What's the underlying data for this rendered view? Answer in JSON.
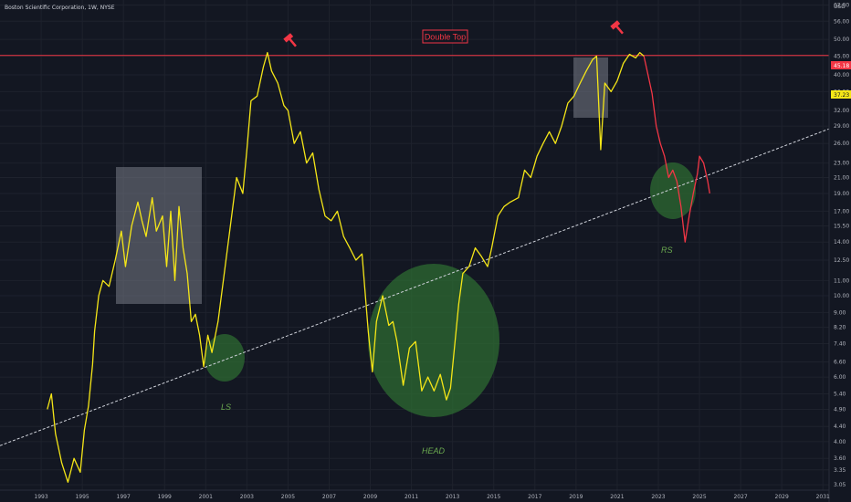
{
  "header": {
    "title": "Boston Scientific Corporation, 1W, NYSE"
  },
  "currency": "USD",
  "chart_data": {
    "type": "line",
    "y_scale": "log",
    "ylim": [
      2.95,
      64
    ],
    "xlim": [
      1991.0,
      2031.3
    ],
    "y_ticks": [
      "62.00",
      "56.00",
      "50.00",
      "45.00",
      "40.00",
      "36.00",
      "32.00",
      "29.00",
      "26.00",
      "23.00",
      "21.00",
      "19.00",
      "17.00",
      "15.50",
      "14.00",
      "12.50",
      "11.00",
      "10.00",
      "9.00",
      "8.20",
      "7.40",
      "6.60",
      "6.00",
      "5.40",
      "4.90",
      "4.40",
      "4.00",
      "3.60",
      "3.35",
      "3.05"
    ],
    "x_ticks": [
      "1993",
      "1995",
      "1997",
      "1999",
      "2001",
      "2003",
      "2005",
      "2007",
      "2009",
      "2011",
      "2013",
      "2015",
      "2017",
      "2019",
      "2021",
      "2023",
      "2025",
      "2027",
      "2029",
      "2031"
    ],
    "x_tick_values": [
      1993,
      1995,
      1997,
      1999,
      2001,
      2003,
      2005,
      2007,
      2009,
      2011,
      2013,
      2015,
      2017,
      2019,
      2021,
      2023,
      2025,
      2027,
      2029,
      2031
    ],
    "series": [
      {
        "color": "#f5e617",
        "points": [
          [
            1993.3,
            4.9
          ],
          [
            1993.5,
            5.4
          ],
          [
            1993.7,
            4.2
          ],
          [
            1994.0,
            3.5
          ],
          [
            1994.3,
            3.1
          ],
          [
            1994.6,
            3.6
          ],
          [
            1994.9,
            3.3
          ],
          [
            1995.1,
            4.3
          ],
          [
            1995.3,
            5.0
          ],
          [
            1995.5,
            6.5
          ],
          [
            1995.6,
            8.0
          ],
          [
            1995.8,
            10.0
          ],
          [
            1996.0,
            11.0
          ],
          [
            1996.3,
            10.6
          ],
          [
            1996.6,
            12.5
          ],
          [
            1996.9,
            15.0
          ],
          [
            1997.1,
            12.0
          ],
          [
            1997.4,
            15.5
          ],
          [
            1997.7,
            18.0
          ],
          [
            1997.9,
            16.0
          ],
          [
            1998.1,
            14.5
          ],
          [
            1998.4,
            18.5
          ],
          [
            1998.6,
            15.0
          ],
          [
            1998.9,
            16.5
          ],
          [
            1999.1,
            12.0
          ],
          [
            1999.3,
            17.0
          ],
          [
            1999.5,
            11.0
          ],
          [
            1999.7,
            17.5
          ],
          [
            1999.9,
            13.5
          ],
          [
            2000.1,
            11.5
          ],
          [
            2000.3,
            8.5
          ],
          [
            2000.5,
            8.9
          ],
          [
            2000.7,
            7.8
          ],
          [
            2000.9,
            6.4
          ],
          [
            2001.1,
            7.8
          ],
          [
            2001.3,
            7.0
          ],
          [
            2001.6,
            8.5
          ],
          [
            2001.9,
            11.5
          ],
          [
            2002.2,
            15.5
          ],
          [
            2002.5,
            21.0
          ],
          [
            2002.8,
            19.0
          ],
          [
            2003.0,
            25.0
          ],
          [
            2003.2,
            34.0
          ],
          [
            2003.5,
            35.0
          ],
          [
            2003.8,
            42.0
          ],
          [
            2004.0,
            46.0
          ],
          [
            2004.2,
            41.0
          ],
          [
            2004.5,
            38.0
          ],
          [
            2004.8,
            33.0
          ],
          [
            2005.0,
            32.0
          ],
          [
            2005.3,
            26.0
          ],
          [
            2005.6,
            28.0
          ],
          [
            2005.9,
            23.0
          ],
          [
            2006.2,
            24.5
          ],
          [
            2006.5,
            19.5
          ],
          [
            2006.8,
            16.5
          ],
          [
            2007.1,
            16.0
          ],
          [
            2007.4,
            17.0
          ],
          [
            2007.7,
            14.5
          ],
          [
            2008.0,
            13.5
          ],
          [
            2008.3,
            12.5
          ],
          [
            2008.6,
            13.0
          ],
          [
            2008.9,
            8.0
          ],
          [
            2009.1,
            6.2
          ],
          [
            2009.3,
            8.5
          ],
          [
            2009.6,
            10.0
          ],
          [
            2009.9,
            8.3
          ],
          [
            2010.1,
            8.5
          ],
          [
            2010.3,
            7.5
          ],
          [
            2010.6,
            5.7
          ],
          [
            2010.9,
            7.2
          ],
          [
            2011.2,
            7.5
          ],
          [
            2011.5,
            5.5
          ],
          [
            2011.8,
            6.0
          ],
          [
            2012.1,
            5.5
          ],
          [
            2012.4,
            6.1
          ],
          [
            2012.7,
            5.2
          ],
          [
            2012.9,
            5.6
          ],
          [
            2013.1,
            7.3
          ],
          [
            2013.3,
            9.5
          ],
          [
            2013.5,
            11.5
          ],
          [
            2013.8,
            12.0
          ],
          [
            2014.1,
            13.5
          ],
          [
            2014.4,
            12.8
          ],
          [
            2014.7,
            12.0
          ],
          [
            2014.9,
            13.5
          ],
          [
            2015.2,
            16.5
          ],
          [
            2015.5,
            17.5
          ],
          [
            2015.8,
            18.0
          ],
          [
            2016.2,
            18.5
          ],
          [
            2016.5,
            22.0
          ],
          [
            2016.8,
            21.0
          ],
          [
            2017.1,
            24.0
          ],
          [
            2017.4,
            26.0
          ],
          [
            2017.7,
            28.0
          ],
          [
            2018.0,
            26.0
          ],
          [
            2018.3,
            29.0
          ],
          [
            2018.6,
            33.5
          ],
          [
            2018.9,
            35.0
          ],
          [
            2019.2,
            38.0
          ],
          [
            2019.5,
            41.0
          ],
          [
            2019.8,
            44.0
          ],
          [
            2020.0,
            45.0
          ],
          [
            2020.2,
            25.0
          ],
          [
            2020.4,
            38.0
          ],
          [
            2020.7,
            36.0
          ],
          [
            2021.0,
            38.5
          ],
          [
            2021.3,
            43.0
          ],
          [
            2021.6,
            45.5
          ],
          [
            2021.9,
            44.5
          ],
          [
            2022.1,
            46.0
          ],
          [
            2022.3,
            45.0
          ]
        ]
      },
      {
        "color": "#f23645",
        "points": [
          [
            2022.3,
            45.0
          ],
          [
            2022.5,
            40.0
          ],
          [
            2022.7,
            35.5
          ],
          [
            2022.9,
            29.0
          ],
          [
            2023.1,
            26.0
          ],
          [
            2023.3,
            24.0
          ],
          [
            2023.5,
            21.0
          ],
          [
            2023.7,
            22.0
          ],
          [
            2023.9,
            20.5
          ],
          [
            2024.1,
            17.5
          ],
          [
            2024.3,
            14.0
          ],
          [
            2024.5,
            16.5
          ],
          [
            2024.7,
            19.0
          ],
          [
            2024.9,
            21.5
          ],
          [
            2025.0,
            24.0
          ],
          [
            2025.2,
            23.0
          ],
          [
            2025.4,
            20.5
          ],
          [
            2025.5,
            19.0
          ]
        ]
      }
    ],
    "resistance_line": {
      "value": 45.18,
      "color": "#f23645"
    },
    "trendline": {
      "from": [
        1991.0,
        3.9
      ],
      "to": [
        2031.3,
        28.5
      ]
    },
    "labels": {
      "price_badge_1": "45.18",
      "price_badge_2": "37.23",
      "double_top": "Double Top",
      "ls": "LS",
      "head": "HEAD",
      "rs": "RS"
    },
    "colors": {
      "line": "#f5e617",
      "down": "#f23645",
      "highlight": "#2e6b32",
      "box": "#787b86"
    }
  }
}
